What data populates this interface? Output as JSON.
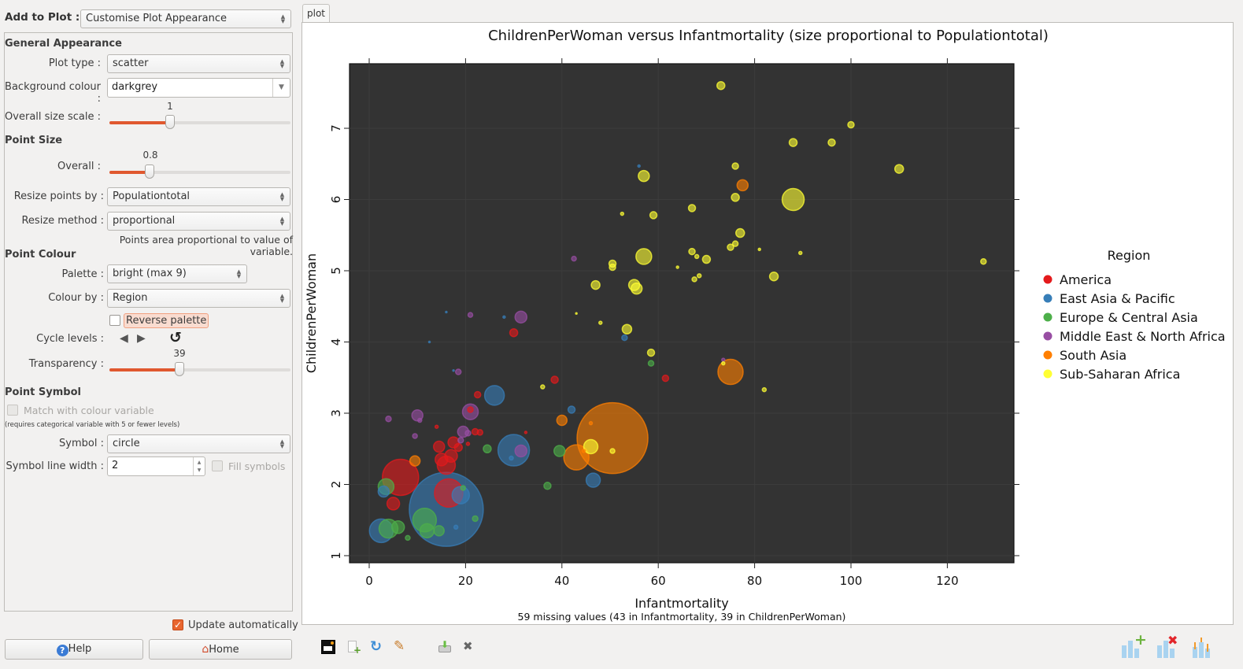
{
  "top": {
    "add_to_plot_label": "Add to Plot :",
    "add_to_plot_value": "Customise Plot Appearance"
  },
  "general": {
    "heading": "General Appearance",
    "plot_type_label": "Plot type :",
    "plot_type_value": "scatter",
    "bg_label": "Background colour :",
    "bg_value": "darkgrey",
    "size_scale_label": "Overall size scale :",
    "size_scale_value": "1"
  },
  "point_size": {
    "heading": "Point Size",
    "overall_label": "Overall :",
    "overall_value": "0.8",
    "resize_by_label": "Resize points by :",
    "resize_by_value": "Populationtotal",
    "resize_method_label": "Resize method :",
    "resize_method_value": "proportional",
    "note": "Points area proportional to value of variable."
  },
  "point_colour": {
    "heading": "Point Colour",
    "palette_label": "Palette :",
    "palette_value": "bright (max 9)",
    "colour_by_label": "Colour by :",
    "colour_by_value": "Region",
    "reverse_label": "Reverse palette",
    "cycle_label": "Cycle levels :",
    "transparency_label": "Transparency :",
    "transparency_value": "39"
  },
  "point_symbol": {
    "heading": "Point Symbol",
    "match_label": "Match with colour variable",
    "match_note": "(requires categorical variable with 5 or fewer levels)",
    "symbol_label": "Symbol :",
    "symbol_value": "circle",
    "line_width_label": "Symbol line width :",
    "line_width_value": "2",
    "fill_label": "Fill symbols"
  },
  "footer": {
    "update_label": "Update automatically",
    "help_label": "Help",
    "home_label": "Home"
  },
  "tab": {
    "label": "plot"
  },
  "toolbar_icons": [
    "new-window-icon",
    "add-document-icon",
    "refresh-icon",
    "edit-icon",
    "save-icon",
    "close-icon"
  ],
  "bottom_right_icons": [
    "add-plot-icon",
    "remove-plot-icon",
    "error-bars-icon"
  ],
  "chart_data": {
    "type": "scatter",
    "title": "ChildrenPerWoman versus Infantmortality (size proportional to Populationtotal)",
    "xlabel": "Infantmortality",
    "ylabel": "ChildrenPerWoman",
    "subtitle": "59 missing values (43 in Infantmortality, 39 in ChildrenPerWoman)",
    "xticks": [
      "0",
      "20",
      "40",
      "60",
      "80",
      "100",
      "120"
    ],
    "yticks": [
      "1",
      "2",
      "3",
      "4",
      "5",
      "6",
      "7"
    ],
    "xlim": [
      -4,
      134
    ],
    "ylim": [
      0.9,
      7.9
    ],
    "background": "#333333",
    "grid": true,
    "legend": {
      "title": "Region",
      "position": "right",
      "entries": [
        {
          "label": "America",
          "color": "#e41a1c"
        },
        {
          "label": "East Asia & Pacific",
          "color": "#377eb8"
        },
        {
          "label": "Europe & Central Asia",
          "color": "#4daf4a"
        },
        {
          "label": "Middle East & North Africa",
          "color": "#984ea3"
        },
        {
          "label": "South Asia",
          "color": "#ff7f00"
        },
        {
          "label": "Sub-Saharan Africa",
          "color": "#ffff33"
        }
      ]
    },
    "points": [
      {
        "x": 73,
        "y": 7.6,
        "r": 5,
        "g": 5
      },
      {
        "x": 100,
        "y": 7.05,
        "r": 4,
        "g": 5
      },
      {
        "x": 88,
        "y": 6.8,
        "r": 5,
        "g": 5
      },
      {
        "x": 96,
        "y": 6.8,
        "r": 4.5,
        "g": 5
      },
      {
        "x": 76,
        "y": 6.47,
        "r": 4,
        "g": 5
      },
      {
        "x": 110,
        "y": 6.43,
        "r": 5.5,
        "g": 5
      },
      {
        "x": 57,
        "y": 6.33,
        "r": 7,
        "g": 5
      },
      {
        "x": 56,
        "y": 6.47,
        "r": 1.5,
        "g": 1
      },
      {
        "x": 77.5,
        "y": 6.2,
        "r": 7,
        "g": 4
      },
      {
        "x": 76,
        "y": 6.03,
        "r": 5,
        "g": 5
      },
      {
        "x": 88,
        "y": 6.0,
        "r": 14,
        "g": 5
      },
      {
        "x": 67,
        "y": 5.88,
        "r": 4.5,
        "g": 5
      },
      {
        "x": 59,
        "y": 5.78,
        "r": 4.5,
        "g": 5
      },
      {
        "x": 52.5,
        "y": 5.8,
        "r": 2,
        "g": 5
      },
      {
        "x": 77,
        "y": 5.53,
        "r": 5.5,
        "g": 5
      },
      {
        "x": 76,
        "y": 5.38,
        "r": 3.5,
        "g": 5
      },
      {
        "x": 75,
        "y": 5.33,
        "r": 4,
        "g": 5
      },
      {
        "x": 127.5,
        "y": 5.13,
        "r": 3.5,
        "g": 5
      },
      {
        "x": 67,
        "y": 5.27,
        "r": 4,
        "g": 5
      },
      {
        "x": 68,
        "y": 5.2,
        "r": 2.5,
        "g": 5
      },
      {
        "x": 70,
        "y": 5.16,
        "r": 5,
        "g": 5
      },
      {
        "x": 57,
        "y": 5.2,
        "r": 10,
        "g": 5
      },
      {
        "x": 81,
        "y": 5.3,
        "r": 1.5,
        "g": 5
      },
      {
        "x": 89.5,
        "y": 5.25,
        "r": 2,
        "g": 5
      },
      {
        "x": 64,
        "y": 5.05,
        "r": 1.5,
        "g": 5
      },
      {
        "x": 50.5,
        "y": 5.1,
        "r": 4.5,
        "g": 5
      },
      {
        "x": 50.5,
        "y": 5.05,
        "r": 4,
        "g": 5
      },
      {
        "x": 68.5,
        "y": 4.93,
        "r": 2.5,
        "g": 5
      },
      {
        "x": 67.5,
        "y": 4.88,
        "r": 3,
        "g": 5
      },
      {
        "x": 84,
        "y": 4.92,
        "r": 5.5,
        "g": 5
      },
      {
        "x": 42.5,
        "y": 5.17,
        "r": 3,
        "g": 3
      },
      {
        "x": 47,
        "y": 4.8,
        "r": 5.5,
        "g": 5
      },
      {
        "x": 55,
        "y": 4.8,
        "r": 7,
        "g": 5
      },
      {
        "x": 55.5,
        "y": 4.75,
        "r": 7,
        "g": 5
      },
      {
        "x": 43,
        "y": 4.4,
        "r": 1,
        "g": 5
      },
      {
        "x": 48,
        "y": 4.27,
        "r": 2,
        "g": 5
      },
      {
        "x": 53.5,
        "y": 4.18,
        "r": 6,
        "g": 5
      },
      {
        "x": 53,
        "y": 4.06,
        "r": 3.5,
        "g": 1
      },
      {
        "x": 58.5,
        "y": 3.85,
        "r": 4.5,
        "g": 5
      },
      {
        "x": 58.5,
        "y": 3.7,
        "r": 3.5,
        "g": 2
      },
      {
        "x": 61.5,
        "y": 3.49,
        "r": 4,
        "g": 0
      },
      {
        "x": 75,
        "y": 3.58,
        "r": 16,
        "g": 4
      },
      {
        "x": 73.5,
        "y": 3.75,
        "r": 2,
        "g": 3
      },
      {
        "x": 73.5,
        "y": 3.7,
        "r": 2,
        "g": 5
      },
      {
        "x": 82,
        "y": 3.33,
        "r": 2.5,
        "g": 5
      },
      {
        "x": 16,
        "y": 4.42,
        "r": 1,
        "g": 1
      },
      {
        "x": 21,
        "y": 4.38,
        "r": 3,
        "g": 3
      },
      {
        "x": 28,
        "y": 4.35,
        "r": 1.5,
        "g": 1
      },
      {
        "x": 31.5,
        "y": 4.35,
        "r": 7.5,
        "g": 3
      },
      {
        "x": 30,
        "y": 4.13,
        "r": 5,
        "g": 0
      },
      {
        "x": 12.5,
        "y": 4.0,
        "r": 1,
        "g": 1
      },
      {
        "x": 17.5,
        "y": 3.6,
        "r": 1,
        "g": 1
      },
      {
        "x": 18.5,
        "y": 3.58,
        "r": 3.5,
        "g": 3
      },
      {
        "x": 38.5,
        "y": 3.47,
        "r": 4.5,
        "g": 0
      },
      {
        "x": 36,
        "y": 3.37,
        "r": 2.5,
        "g": 5
      },
      {
        "x": 26,
        "y": 3.25,
        "r": 12.5,
        "g": 1
      },
      {
        "x": 22.5,
        "y": 3.26,
        "r": 4,
        "g": 0
      },
      {
        "x": 42,
        "y": 3.05,
        "r": 4.5,
        "g": 1
      },
      {
        "x": 40,
        "y": 2.9,
        "r": 6.5,
        "g": 4
      },
      {
        "x": 46,
        "y": 2.86,
        "r": 2,
        "g": 4
      },
      {
        "x": 50.5,
        "y": 2.65,
        "r": 45,
        "g": 4
      },
      {
        "x": 46,
        "y": 2.53,
        "r": 9,
        "g": 5
      },
      {
        "x": 43,
        "y": 2.38,
        "r": 16,
        "g": 4
      },
      {
        "x": 44.5,
        "y": 2.47,
        "r": 2,
        "g": 4
      },
      {
        "x": 39.5,
        "y": 2.47,
        "r": 7,
        "g": 2
      },
      {
        "x": 50.5,
        "y": 2.47,
        "r": 3,
        "g": 5
      },
      {
        "x": 46.5,
        "y": 2.06,
        "r": 9,
        "g": 1
      },
      {
        "x": 37,
        "y": 1.98,
        "r": 4.5,
        "g": 2
      },
      {
        "x": 30,
        "y": 2.48,
        "r": 20,
        "g": 1
      },
      {
        "x": 31.5,
        "y": 2.47,
        "r": 7.5,
        "g": 3
      },
      {
        "x": 29.5,
        "y": 2.37,
        "r": 2.5,
        "g": 1
      },
      {
        "x": 32.5,
        "y": 2.73,
        "r": 1.5,
        "g": 0
      },
      {
        "x": 4,
        "y": 2.92,
        "r": 3.5,
        "g": 3
      },
      {
        "x": 10,
        "y": 2.97,
        "r": 7,
        "g": 3
      },
      {
        "x": 10.5,
        "y": 2.9,
        "r": 2.5,
        "g": 3
      },
      {
        "x": 21,
        "y": 3.02,
        "r": 10,
        "g": 3
      },
      {
        "x": 21,
        "y": 3.05,
        "r": 3.5,
        "g": 0
      },
      {
        "x": 19.5,
        "y": 2.74,
        "r": 7,
        "g": 3
      },
      {
        "x": 20.5,
        "y": 2.72,
        "r": 3.5,
        "g": 3
      },
      {
        "x": 22,
        "y": 2.74,
        "r": 4,
        "g": 0
      },
      {
        "x": 23,
        "y": 2.73,
        "r": 3.5,
        "g": 0
      },
      {
        "x": 24.5,
        "y": 2.5,
        "r": 5,
        "g": 2
      },
      {
        "x": 20.5,
        "y": 2.57,
        "r": 2,
        "g": 0
      },
      {
        "x": 19,
        "y": 2.62,
        "r": 3.5,
        "g": 3
      },
      {
        "x": 14,
        "y": 2.81,
        "r": 2,
        "g": 0
      },
      {
        "x": 9.5,
        "y": 2.68,
        "r": 3,
        "g": 3
      },
      {
        "x": 14.5,
        "y": 2.53,
        "r": 7,
        "g": 0
      },
      {
        "x": 17.5,
        "y": 2.59,
        "r": 7,
        "g": 0
      },
      {
        "x": 18.5,
        "y": 2.52,
        "r": 5,
        "g": 0
      },
      {
        "x": 17,
        "y": 2.4,
        "r": 8,
        "g": 0
      },
      {
        "x": 15,
        "y": 2.35,
        "r": 8,
        "g": 0
      },
      {
        "x": 16,
        "y": 2.27,
        "r": 11.5,
        "g": 0
      },
      {
        "x": 9.5,
        "y": 2.33,
        "r": 6.5,
        "g": 4
      },
      {
        "x": 6.5,
        "y": 2.1,
        "r": 23,
        "g": 0
      },
      {
        "x": 3.5,
        "y": 1.97,
        "r": 10,
        "g": 2
      },
      {
        "x": 3,
        "y": 1.9,
        "r": 7,
        "g": 1
      },
      {
        "x": 5,
        "y": 1.73,
        "r": 8,
        "g": 0
      },
      {
        "x": 16,
        "y": 1.65,
        "r": 47,
        "g": 1
      },
      {
        "x": 16.5,
        "y": 1.88,
        "r": 18,
        "g": 0
      },
      {
        "x": 19,
        "y": 1.85,
        "r": 11,
        "g": 1
      },
      {
        "x": 2.5,
        "y": 1.35,
        "r": 15,
        "g": 1
      },
      {
        "x": 4,
        "y": 1.38,
        "r": 12,
        "g": 2
      },
      {
        "x": 6,
        "y": 1.4,
        "r": 8,
        "g": 2
      },
      {
        "x": 11.5,
        "y": 1.5,
        "r": 15,
        "g": 2
      },
      {
        "x": 12,
        "y": 1.35,
        "r": 9,
        "g": 2
      },
      {
        "x": 14.5,
        "y": 1.35,
        "r": 6.5,
        "g": 2
      },
      {
        "x": 8,
        "y": 1.25,
        "r": 3,
        "g": 2
      },
      {
        "x": 18,
        "y": 1.4,
        "r": 2.5,
        "g": 1
      },
      {
        "x": 19.5,
        "y": 1.95,
        "r": 3,
        "g": 2
      },
      {
        "x": 22,
        "y": 1.52,
        "r": 3.5,
        "g": 2
      }
    ]
  }
}
